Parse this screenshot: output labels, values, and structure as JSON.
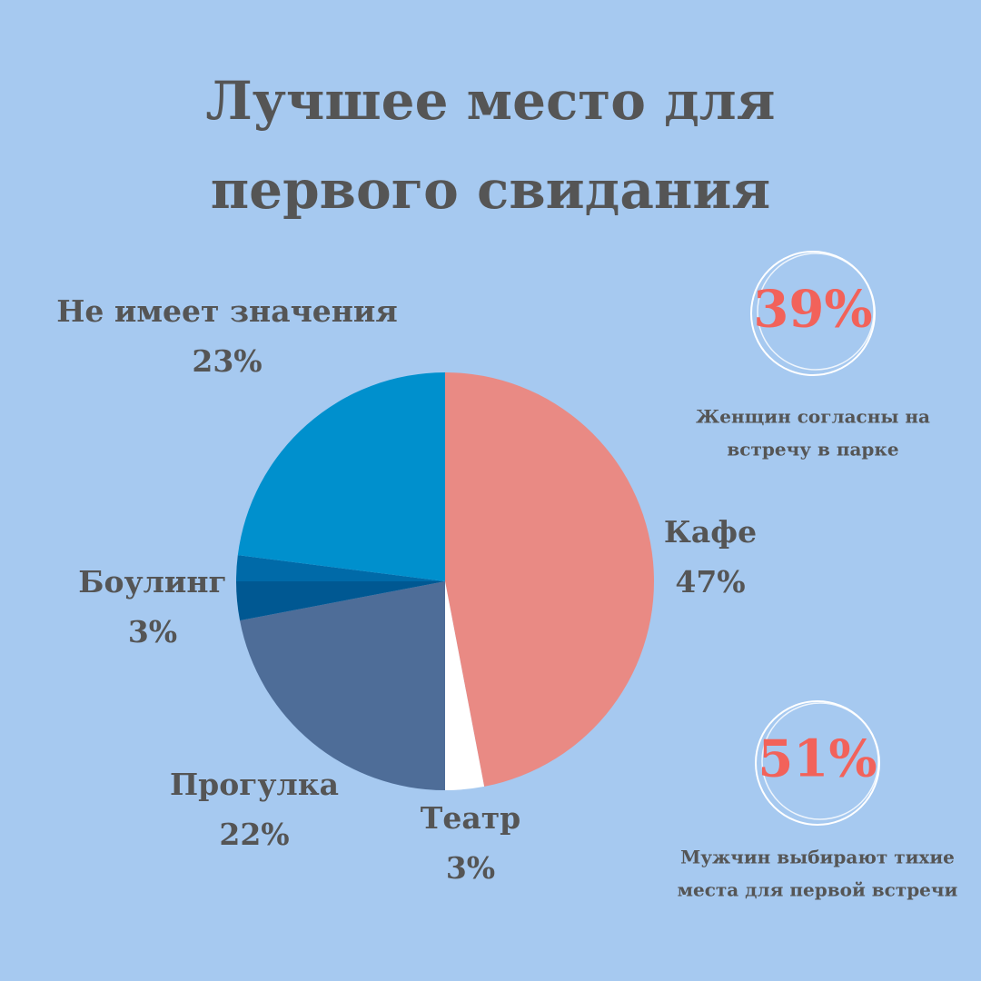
{
  "chart_data": {
    "type": "pie",
    "title": "Лучшее место для первого свидания",
    "categories": [
      "Кафе",
      "Театр",
      "Прогулка",
      "Боулинг",
      null,
      "Не имеет значения"
    ],
    "values": [
      47,
      3,
      22,
      3,
      2,
      23
    ],
    "value_labels": [
      "47%",
      "3%",
      "22%",
      "3%",
      null,
      "23%"
    ],
    "colors": [
      "#e98a84",
      "#ffffff",
      "#4e6d98",
      "#005892",
      "#006aa8",
      "#0090cd"
    ]
  },
  "callouts": [
    {
      "value": "39%",
      "text": [
        "Женщин согласны на",
        "встречу в парке"
      ]
    },
    {
      "value": "51%",
      "text": [
        "Мужчин выбирают тихие",
        "места для первой встречи"
      ]
    }
  ]
}
